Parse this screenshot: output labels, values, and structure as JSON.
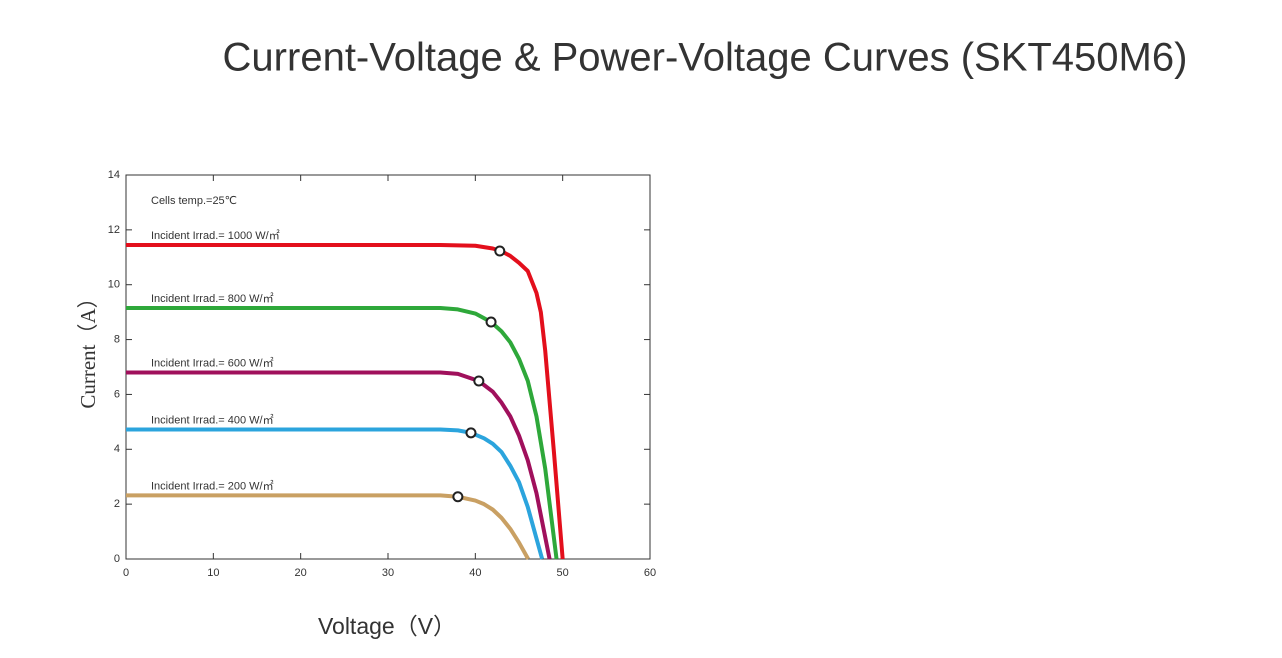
{
  "chart_data": {
    "type": "line",
    "title": "Current-Voltage & Power-Voltage Curves (SKT450M6)",
    "x_label": "Voltage（V）",
    "y_label": "Current（A）",
    "annotation": "Cells temp.=25℃",
    "xlim": [
      0,
      60
    ],
    "xticks": [
      0,
      10,
      20,
      30,
      40,
      50,
      60
    ],
    "ylim": [
      0,
      14
    ],
    "yticks": [
      0,
      2,
      4,
      6,
      8,
      10,
      12,
      14
    ],
    "series": [
      {
        "name": "Incident Irrad.= 1000 W/㎡",
        "color": "#e30f1c",
        "x": [
          0,
          36,
          40,
          42,
          43,
          44,
          45,
          46,
          47,
          47.5,
          48,
          49,
          50
        ],
        "values": [
          11.45,
          11.45,
          11.42,
          11.32,
          11.22,
          11.05,
          10.8,
          10.5,
          9.7,
          9.0,
          7.6,
          3.9,
          0
        ],
        "mpp_voltage": 42.8,
        "mpp_current": 11.23
      },
      {
        "name": "Incident Irrad.= 800 W/㎡",
        "color": "#2ea83a",
        "x": [
          0,
          36,
          38,
          40,
          41.8,
          43,
          44,
          45,
          46,
          47,
          48,
          49.3
        ],
        "values": [
          9.15,
          9.15,
          9.1,
          8.95,
          8.64,
          8.3,
          7.9,
          7.3,
          6.5,
          5.2,
          3.3,
          0
        ],
        "mpp_voltage": 41.8,
        "mpp_current": 8.64
      },
      {
        "name": "Incident Irrad.= 600 W/㎡",
        "color": "#a0105c",
        "x": [
          0,
          36,
          38,
          40.4,
          42,
          43,
          44,
          45,
          46,
          47,
          48.5
        ],
        "values": [
          6.8,
          6.8,
          6.75,
          6.49,
          6.1,
          5.7,
          5.2,
          4.5,
          3.6,
          2.4,
          0
        ],
        "mpp_voltage": 40.4,
        "mpp_current": 6.49
      },
      {
        "name": "Incident Irrad.= 400 W/㎡",
        "color": "#2ba4dd",
        "x": [
          0,
          36,
          38,
          39.5,
          41,
          42,
          43,
          44,
          45,
          46,
          47.65
        ],
        "values": [
          4.72,
          4.72,
          4.69,
          4.6,
          4.4,
          4.2,
          3.9,
          3.4,
          2.8,
          1.9,
          0
        ],
        "mpp_voltage": 39.5,
        "mpp_current": 4.6
      },
      {
        "name": "Incident Irrad.= 200 W/㎡",
        "color": "#c9a063",
        "x": [
          0,
          36,
          38,
          40,
          41,
          42,
          43,
          44,
          45,
          46.05
        ],
        "values": [
          2.32,
          2.32,
          2.27,
          2.13,
          2.0,
          1.8,
          1.5,
          1.1,
          0.6,
          0
        ],
        "mpp_voltage": 38,
        "mpp_current": 2.27
      }
    ]
  }
}
